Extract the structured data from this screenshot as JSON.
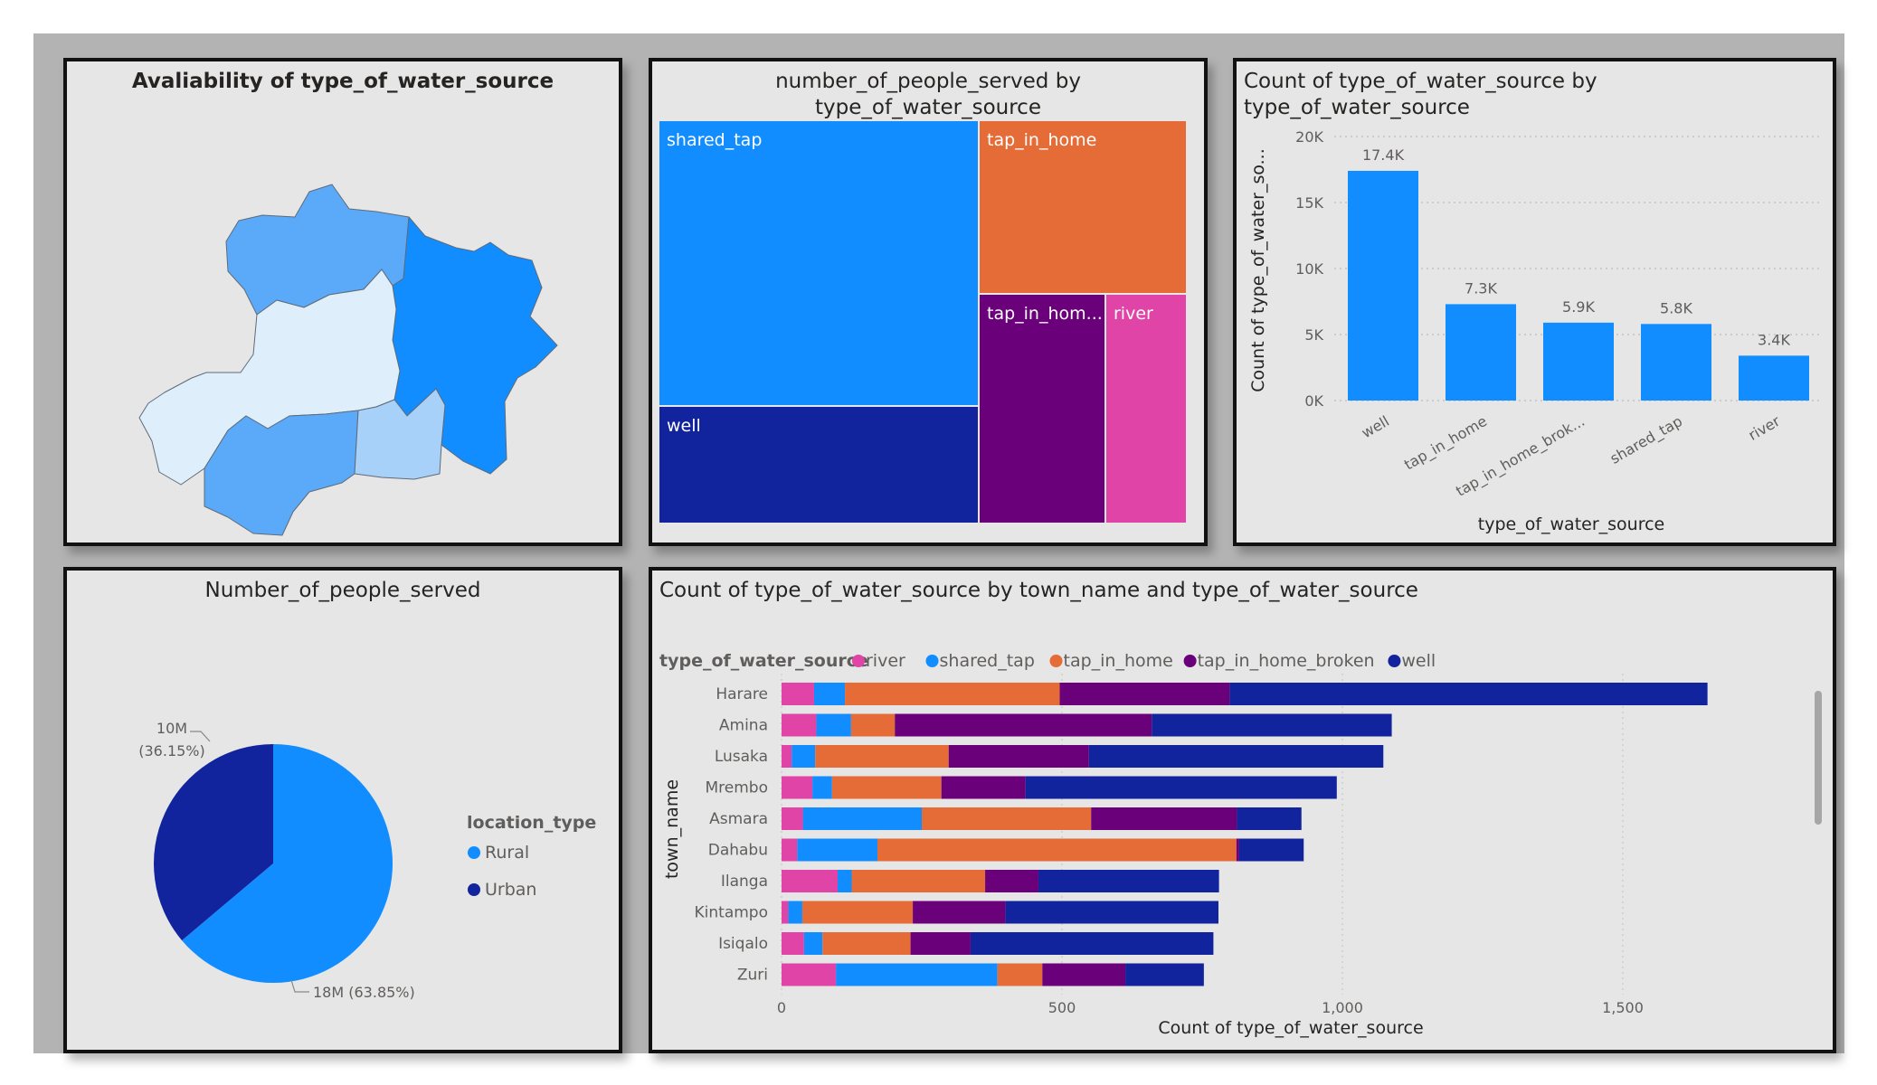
{
  "panels": {
    "map_title": "Avaliability of type_of_water_source",
    "treemap_title": [
      "number_of_people_served by",
      "type_of_water_source"
    ],
    "bar_title": [
      "Count of type_of_water_source by",
      "type_of_water_source"
    ],
    "pie_title": "Number_of_people_served",
    "stacked_title": "Count of type_of_water_source by town_name and type_of_water_source"
  },
  "colors": {
    "river": "#e044a7",
    "shared_tap": "#118dff",
    "tap_in_home": "#e66c37",
    "tap_in_home_broken": "#6b007b",
    "well": "#12239e",
    "map_light": "#dfeefb",
    "map_pale": "#a8d1fa",
    "map_mid": "#5aaaf9",
    "panel_bg": "#e6e6e6"
  },
  "map": {
    "regions": [
      "region-north",
      "region-east",
      "region-center",
      "region-south",
      "region-southeast-small"
    ]
  },
  "chart_data": [
    {
      "type": "treemap",
      "title": "number_of_people_served by type_of_water_source",
      "tiles": [
        {
          "label": "shared_tap",
          "color_key": "shared_tap"
        },
        {
          "label": "well",
          "color_key": "well"
        },
        {
          "label": "tap_in_home",
          "color_key": "tap_in_home"
        },
        {
          "label": "tap_in_hom...",
          "color_key": "tap_in_home_broken"
        },
        {
          "label": "river",
          "color_key": "river"
        }
      ]
    },
    {
      "type": "bar",
      "title": "Count of type_of_water_source by type_of_water_source",
      "categories": [
        "well",
        "tap_in_home",
        "tap_in_home_brok...",
        "shared_tap",
        "river"
      ],
      "values": [
        17400,
        7300,
        5900,
        5800,
        3400
      ],
      "data_labels": [
        "17.4K",
        "7.3K",
        "5.9K",
        "5.8K",
        "3.4K"
      ],
      "xlabel": "type_of_water_source",
      "ylabel": "Count of type_of_water_so...",
      "yticks": [
        0,
        5000,
        10000,
        15000,
        20000
      ],
      "ytick_labels": [
        "0K",
        "5K",
        "10K",
        "15K",
        "20K"
      ],
      "ylim": [
        0,
        20000
      ],
      "grid": true
    },
    {
      "type": "pie",
      "title": "Number_of_people_served",
      "legend_title": "location_type",
      "slices": [
        {
          "label": "Rural",
          "value": 18,
          "percent": 63.85,
          "data_label": "18M (63.85%)",
          "color_key": "shared_tap"
        },
        {
          "label": "Urban",
          "value": 10,
          "percent": 36.15,
          "data_label_value": "10M",
          "data_label_pct": "(36.15%)",
          "color_key": "well"
        }
      ],
      "legend_placement": "right"
    },
    {
      "type": "bar",
      "orientation": "horizontal",
      "stacked": true,
      "title": "Count of type_of_water_source by town_name and type_of_water_source",
      "legend_title": "type_of_water_source",
      "legend_placement": "top-left",
      "categories": [
        "Harare",
        "Amina",
        "Lusaka",
        "Mrembo",
        "Asmara",
        "Dahabu",
        "Ilanga",
        "Kintampo",
        "Isiqalo",
        "Zuri"
      ],
      "series": [
        {
          "name": "river",
          "color_key": "river",
          "values": [
            58,
            62,
            18,
            55,
            38,
            28,
            100,
            12,
            40,
            97
          ]
        },
        {
          "name": "shared_tap",
          "color_key": "shared_tap",
          "values": [
            55,
            62,
            42,
            35,
            212,
            143,
            25,
            25,
            33,
            288
          ]
        },
        {
          "name": "tap_in_home",
          "color_key": "tap_in_home",
          "values": [
            383,
            78,
            238,
            195,
            302,
            640,
            238,
            197,
            157,
            80
          ]
        },
        {
          "name": "tap_in_home_broken",
          "color_key": "tap_in_home_broken",
          "values": [
            303,
            458,
            250,
            150,
            260,
            5,
            95,
            165,
            107,
            148
          ]
        },
        {
          "name": "well",
          "color_key": "well",
          "values": [
            852,
            428,
            525,
            555,
            115,
            115,
            322,
            380,
            433,
            140
          ]
        }
      ],
      "xlabel": "Count of type_of_water_source",
      "ylabel": "town_name",
      "xticks": [
        0,
        500,
        1000,
        1500
      ],
      "xtick_labels": [
        "0",
        "500",
        "1,000",
        "1,500"
      ],
      "xlim": [
        0,
        1850
      ],
      "grid": true
    }
  ]
}
